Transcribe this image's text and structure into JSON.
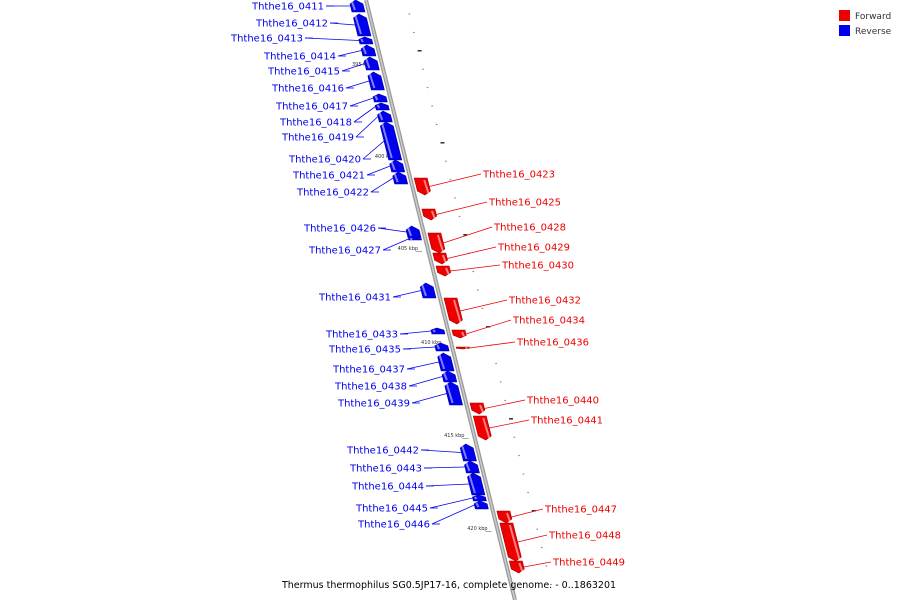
{
  "caption": "Thermus thermophilus SG0.5JP17-16, complete genome. - 0..1863201",
  "legend": [
    {
      "label": "Forward",
      "color": "#ee0000"
    },
    {
      "label": "Reverse",
      "color": "#0000ee"
    }
  ],
  "axis_ticks": [
    "395 kbp",
    "400 kbp",
    "405 kbp",
    "410 kbp",
    "415 kbp",
    "420 kbp"
  ],
  "genes": [
    {
      "id": "Ththe16_0411",
      "strand": "reverse"
    },
    {
      "id": "Ththe16_0412",
      "strand": "reverse"
    },
    {
      "id": "Ththe16_0413",
      "strand": "reverse"
    },
    {
      "id": "Ththe16_0414",
      "strand": "reverse"
    },
    {
      "id": "Ththe16_0415",
      "strand": "reverse"
    },
    {
      "id": "Ththe16_0416",
      "strand": "reverse"
    },
    {
      "id": "Ththe16_0417",
      "strand": "reverse"
    },
    {
      "id": "Ththe16_0418",
      "strand": "reverse"
    },
    {
      "id": "Ththe16_0419",
      "strand": "reverse"
    },
    {
      "id": "Ththe16_0420",
      "strand": "reverse"
    },
    {
      "id": "Ththe16_0421",
      "strand": "reverse"
    },
    {
      "id": "Ththe16_0422",
      "strand": "reverse"
    },
    {
      "id": "Ththe16_0423",
      "strand": "forward"
    },
    {
      "id": "Ththe16_0425",
      "strand": "forward"
    },
    {
      "id": "Ththe16_0426",
      "strand": "reverse"
    },
    {
      "id": "Ththe16_0427",
      "strand": "reverse"
    },
    {
      "id": "Ththe16_0428",
      "strand": "forward"
    },
    {
      "id": "Ththe16_0429",
      "strand": "forward"
    },
    {
      "id": "Ththe16_0430",
      "strand": "forward"
    },
    {
      "id": "Ththe16_0431",
      "strand": "reverse"
    },
    {
      "id": "Ththe16_0432",
      "strand": "forward"
    },
    {
      "id": "Ththe16_0433",
      "strand": "reverse"
    },
    {
      "id": "Ththe16_0434",
      "strand": "forward"
    },
    {
      "id": "Ththe16_0435",
      "strand": "reverse"
    },
    {
      "id": "Ththe16_0436",
      "strand": "forward"
    },
    {
      "id": "Ththe16_0437",
      "strand": "reverse"
    },
    {
      "id": "Ththe16_0438",
      "strand": "reverse"
    },
    {
      "id": "Ththe16_0439",
      "strand": "reverse"
    },
    {
      "id": "Ththe16_0440",
      "strand": "forward"
    },
    {
      "id": "Ththe16_0441",
      "strand": "forward"
    },
    {
      "id": "Ththe16_0442",
      "strand": "reverse"
    },
    {
      "id": "Ththe16_0443",
      "strand": "reverse"
    },
    {
      "id": "Ththe16_0444",
      "strand": "reverse"
    },
    {
      "id": "Ththe16_0445",
      "strand": "reverse"
    },
    {
      "id": "Ththe16_0446",
      "strand": "reverse"
    },
    {
      "id": "Ththe16_0447",
      "strand": "forward"
    },
    {
      "id": "Ththe16_0448",
      "strand": "forward"
    },
    {
      "id": "Ththe16_0449",
      "strand": "forward"
    }
  ]
}
